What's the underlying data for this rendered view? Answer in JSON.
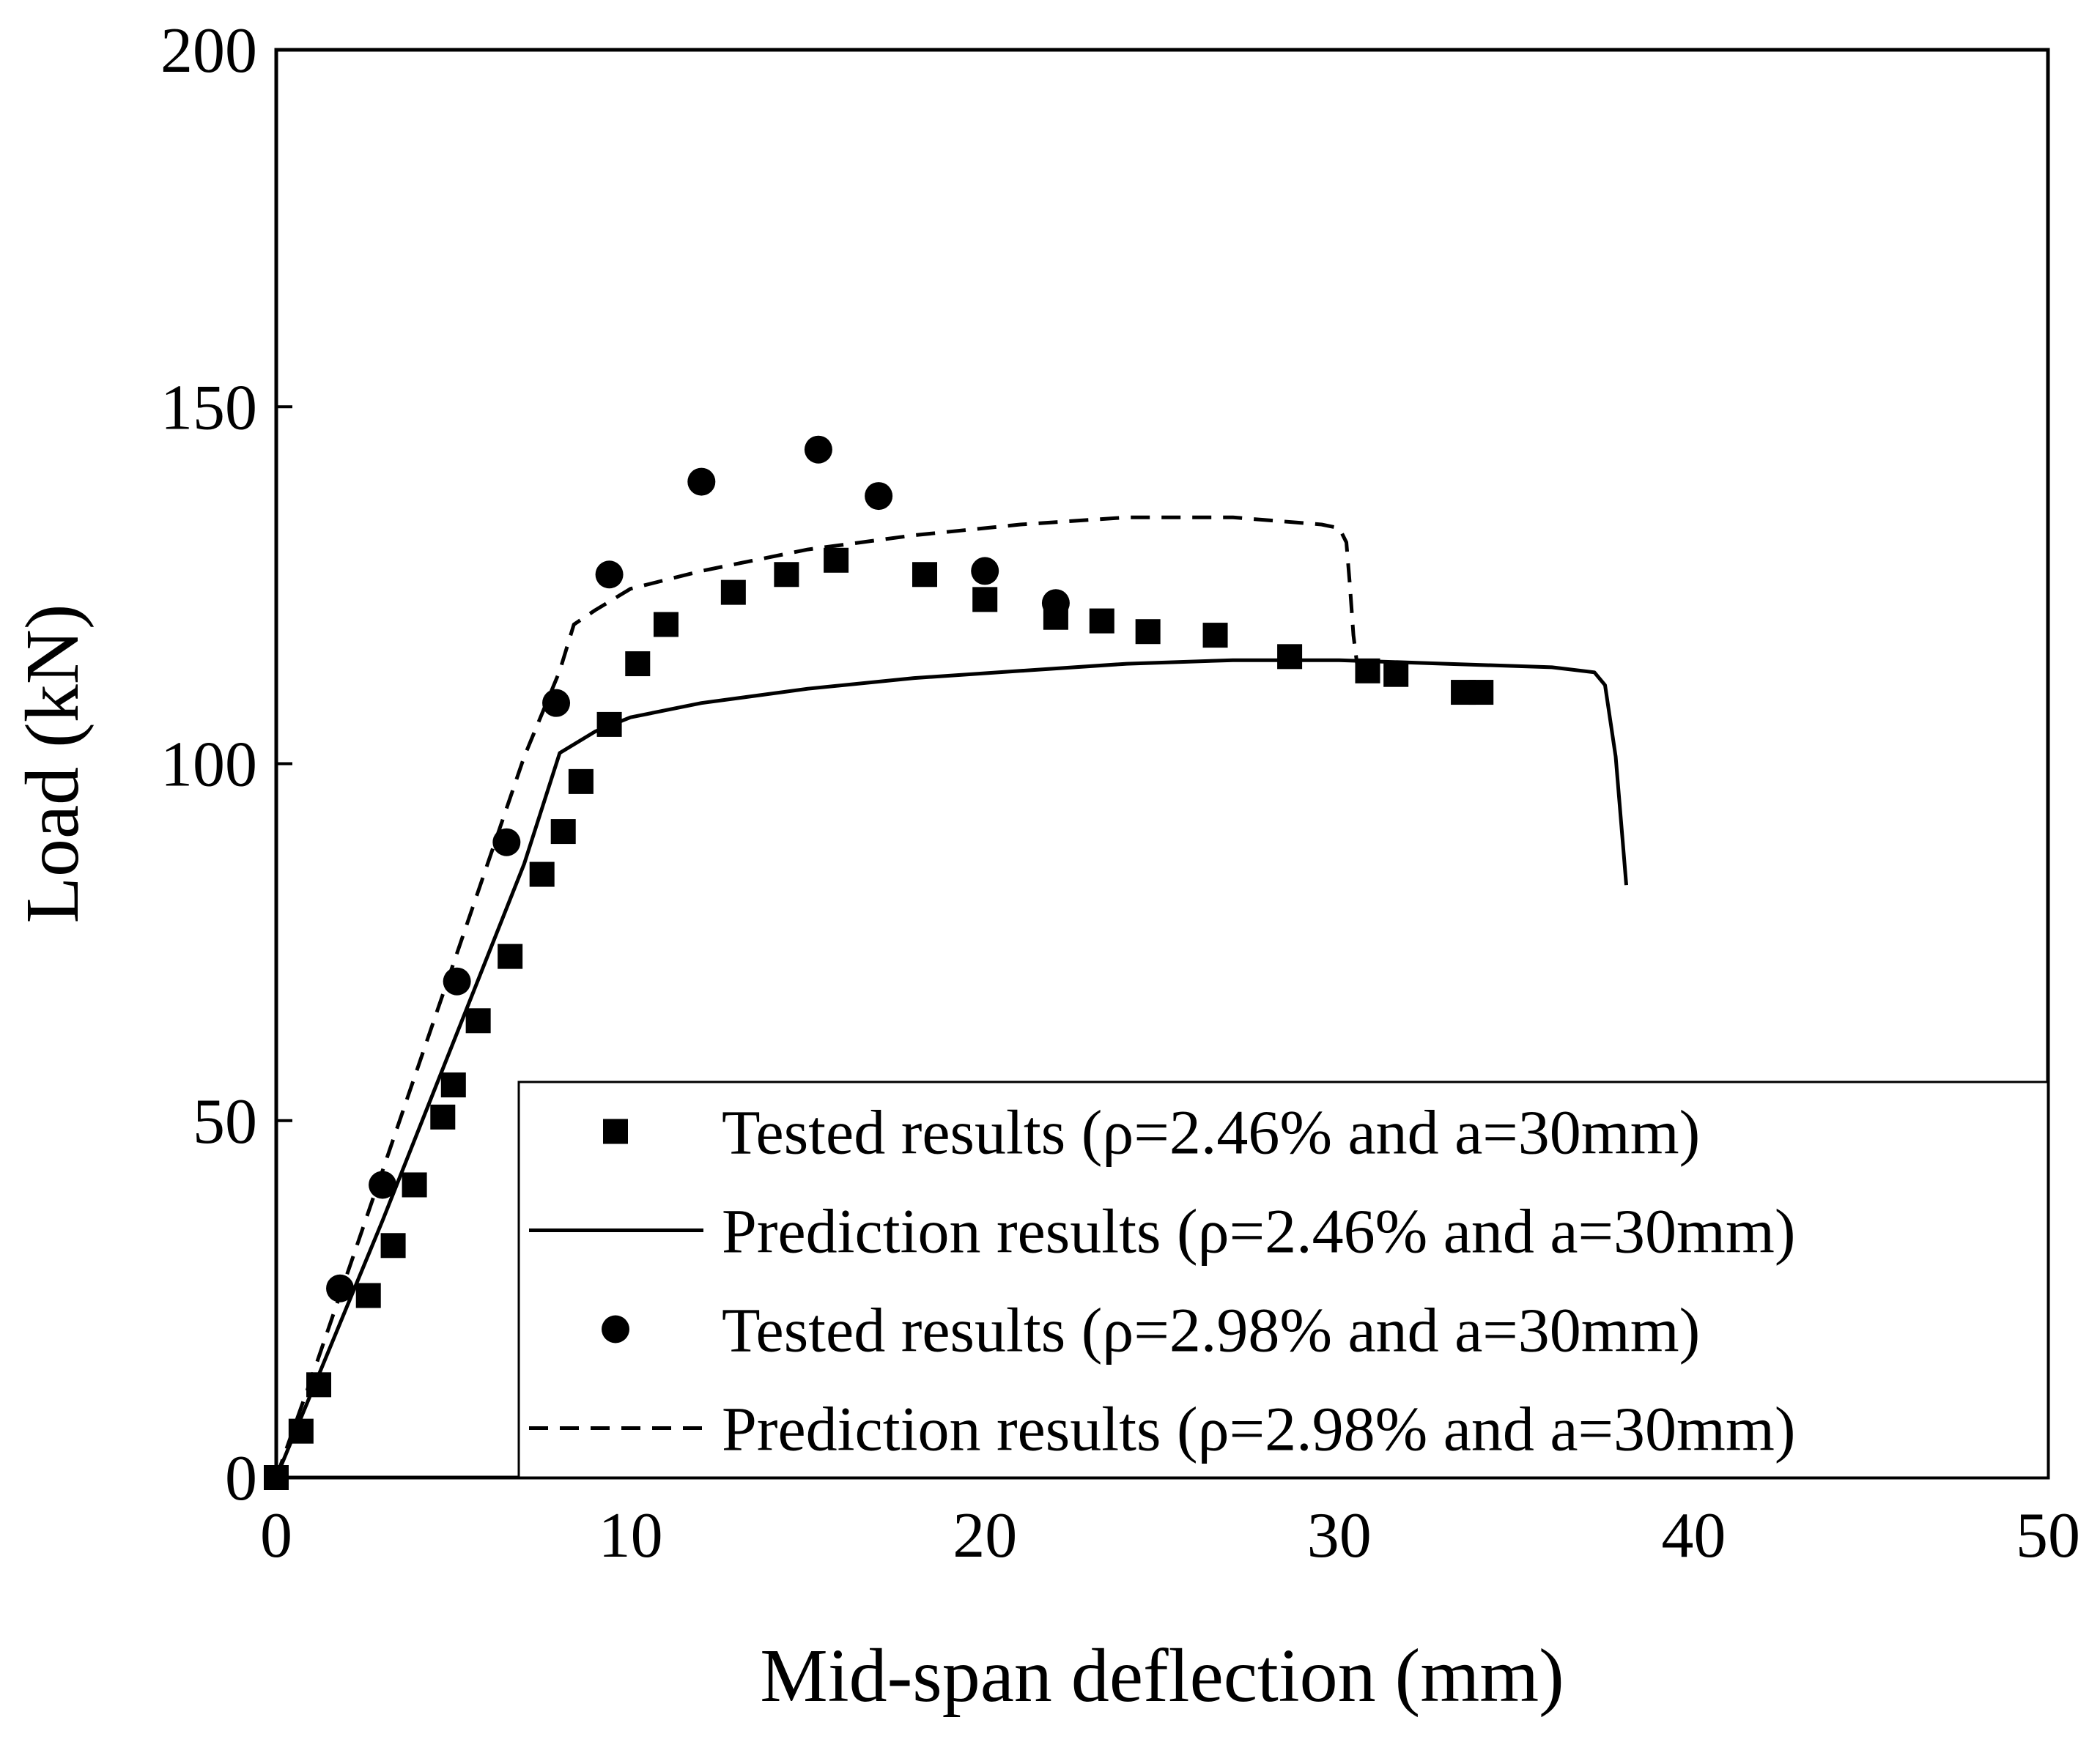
{
  "chart_data": {
    "type": "scatter",
    "title": "",
    "xlabel": "Mid-span deflection (mm)",
    "ylabel": "Load (kN)",
    "xlim": [
      0,
      50
    ],
    "ylim": [
      0,
      200
    ],
    "xticks": [
      0,
      10,
      20,
      30,
      40,
      50
    ],
    "yticks": [
      0,
      50,
      100,
      150,
      200
    ],
    "legend_position": "bottom-right",
    "series": [
      {
        "name": "Tested results (ρ=2.46% and a=30mm)",
        "kind": "scatter",
        "marker": "square",
        "color": "#000000",
        "points": [
          [
            0.0,
            0.0
          ],
          [
            0.7,
            6.5
          ],
          [
            1.2,
            13.0
          ],
          [
            2.6,
            25.5
          ],
          [
            3.3,
            32.5
          ],
          [
            3.9,
            41.0
          ],
          [
            4.7,
            50.5
          ],
          [
            5.0,
            55.0
          ],
          [
            5.7,
            64.0
          ],
          [
            6.6,
            73.0
          ],
          [
            7.5,
            84.5
          ],
          [
            8.1,
            90.5
          ],
          [
            8.6,
            97.5
          ],
          [
            9.4,
            105.5
          ],
          [
            10.2,
            114.0
          ],
          [
            11.0,
            119.5
          ],
          [
            12.9,
            124.0
          ],
          [
            14.4,
            126.5
          ],
          [
            15.8,
            128.5
          ],
          [
            18.3,
            126.5
          ],
          [
            20.0,
            123.0
          ],
          [
            22.0,
            120.5
          ],
          [
            23.3,
            120.0
          ],
          [
            24.6,
            118.5
          ],
          [
            26.5,
            118.0
          ],
          [
            28.6,
            115.0
          ],
          [
            30.8,
            113.0
          ],
          [
            31.6,
            112.5
          ],
          [
            33.5,
            110.0
          ],
          [
            34.0,
            110.0
          ]
        ]
      },
      {
        "name": "Prediction results (ρ=2.46% and a=30mm)",
        "kind": "line",
        "dash": "solid",
        "color": "#000000",
        "points": [
          [
            0.0,
            0.0
          ],
          [
            1.0,
            12.0
          ],
          [
            2.0,
            24.0
          ],
          [
            3.0,
            36.0
          ],
          [
            4.0,
            48.5
          ],
          [
            5.0,
            61.0
          ],
          [
            6.0,
            73.5
          ],
          [
            7.0,
            86.0
          ],
          [
            8.0,
            101.5
          ],
          [
            9.0,
            104.5
          ],
          [
            10.0,
            106.5
          ],
          [
            12.0,
            108.5
          ],
          [
            15.0,
            110.5
          ],
          [
            18.0,
            112.0
          ],
          [
            21.0,
            113.0
          ],
          [
            24.0,
            114.0
          ],
          [
            27.0,
            114.5
          ],
          [
            30.0,
            114.5
          ],
          [
            33.0,
            114.0
          ],
          [
            36.0,
            113.5
          ],
          [
            37.2,
            112.8
          ],
          [
            37.5,
            111.0
          ],
          [
            37.8,
            101.0
          ],
          [
            38.0,
            89.0
          ],
          [
            38.1,
            83.0
          ]
        ]
      },
      {
        "name": "Tested results (ρ=2.98% and a=30mm)",
        "kind": "scatter",
        "marker": "circle",
        "color": "#000000",
        "points": [
          [
            1.8,
            26.5
          ],
          [
            3.0,
            41.0
          ],
          [
            5.1,
            69.5
          ],
          [
            6.5,
            89.0
          ],
          [
            7.9,
            108.5
          ],
          [
            9.4,
            126.5
          ],
          [
            12.0,
            139.5
          ],
          [
            15.3,
            144.0
          ],
          [
            17.0,
            137.5
          ],
          [
            20.0,
            127.0
          ],
          [
            22.0,
            122.5
          ]
        ]
      },
      {
        "name": "Prediction results (ρ=2.98% and a=30mm)",
        "kind": "line",
        "dash": "dashed",
        "color": "#000000",
        "points": [
          [
            0.0,
            0.0
          ],
          [
            1.0,
            14.0
          ],
          [
            2.0,
            28.5
          ],
          [
            3.0,
            43.0
          ],
          [
            4.0,
            57.5
          ],
          [
            5.0,
            72.0
          ],
          [
            6.0,
            86.5
          ],
          [
            7.0,
            101.0
          ],
          [
            8.0,
            113.0
          ],
          [
            8.4,
            119.5
          ],
          [
            9.0,
            121.5
          ],
          [
            10.0,
            124.5
          ],
          [
            12.0,
            127.0
          ],
          [
            15.0,
            130.0
          ],
          [
            18.0,
            132.0
          ],
          [
            21.0,
            133.5
          ],
          [
            24.0,
            134.5
          ],
          [
            27.0,
            134.5
          ],
          [
            29.5,
            133.5
          ],
          [
            30.0,
            133.0
          ],
          [
            30.2,
            131.0
          ],
          [
            30.3,
            125.0
          ],
          [
            30.4,
            118.0
          ],
          [
            30.5,
            114.0
          ]
        ]
      }
    ]
  }
}
